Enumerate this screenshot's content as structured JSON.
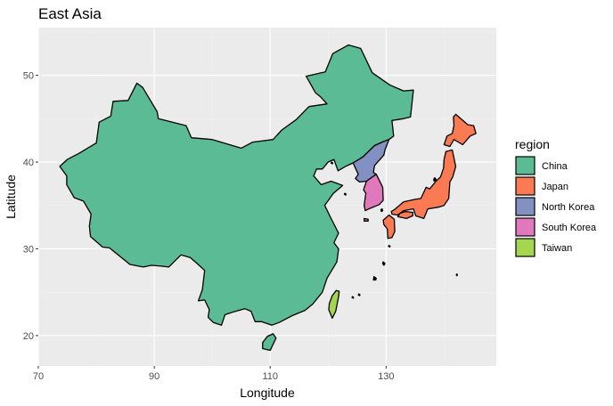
{
  "chart_data": {
    "type": "map",
    "title": "East Asia",
    "xlabel": "Longitude",
    "ylabel": "Latitude",
    "xlim": [
      70,
      149
    ],
    "ylim": [
      16.5,
      55.5
    ],
    "x_ticks": [
      70,
      90,
      110,
      130
    ],
    "y_ticks": [
      20,
      30,
      40,
      50
    ],
    "grid": true,
    "legend": {
      "title": "region",
      "position": "right",
      "entries": [
        {
          "name": "China",
          "color": "#5BBB95"
        },
        {
          "name": "Japan",
          "color": "#FA7B53"
        },
        {
          "name": "North Korea",
          "color": "#8390C2"
        },
        {
          "name": "South Korea",
          "color": "#E079BC"
        },
        {
          "name": "Taiwan",
          "color": "#A5D64F"
        }
      ]
    },
    "regions": [
      {
        "name": "China",
        "color": "#5BBB95",
        "polygons": [
          [
            [
              73.7,
              39.5
            ],
            [
              75.0,
              40.3
            ],
            [
              77.0,
              41.0
            ],
            [
              80.0,
              42.2
            ],
            [
              80.5,
              44.6
            ],
            [
              82.5,
              45.3
            ],
            [
              82.9,
              47.0
            ],
            [
              85.5,
              47.1
            ],
            [
              87.0,
              49.1
            ],
            [
              88.0,
              48.6
            ],
            [
              90.5,
              45.8
            ],
            [
              90.7,
              45.0
            ],
            [
              95.5,
              44.2
            ],
            [
              96.4,
              42.8
            ],
            [
              100.0,
              42.6
            ],
            [
              105.0,
              41.6
            ],
            [
              107.0,
              42.3
            ],
            [
              110.5,
              42.6
            ],
            [
              112.0,
              43.7
            ],
            [
              114.5,
              44.9
            ],
            [
              116.7,
              46.4
            ],
            [
              119.8,
              46.7
            ],
            [
              118.7,
              47.5
            ],
            [
              117.8,
              48.0
            ],
            [
              116.2,
              49.9
            ],
            [
              119.5,
              50.4
            ],
            [
              120.8,
              52.5
            ],
            [
              123.5,
              53.5
            ],
            [
              125.6,
              53.1
            ],
            [
              127.6,
              50.3
            ],
            [
              130.6,
              48.9
            ],
            [
              133.0,
              48.2
            ],
            [
              134.7,
              48.3
            ],
            [
              134.2,
              45.2
            ],
            [
              133.0,
              45.0
            ],
            [
              131.0,
              44.8
            ],
            [
              131.3,
              43.0
            ],
            [
              130.5,
              42.6
            ],
            [
              129.7,
              42.4
            ],
            [
              128.0,
              41.9
            ],
            [
              126.0,
              40.6
            ],
            [
              124.3,
              39.9
            ],
            [
              123.0,
              39.5
            ],
            [
              121.7,
              39.0
            ],
            [
              121.0,
              40.3
            ],
            [
              120.0,
              40.0
            ],
            [
              119.0,
              39.2
            ],
            [
              118.0,
              39.2
            ],
            [
              117.5,
              38.4
            ],
            [
              118.8,
              37.4
            ],
            [
              120.5,
              37.8
            ],
            [
              122.5,
              37.3
            ],
            [
              120.9,
              36.4
            ],
            [
              119.4,
              35.0
            ],
            [
              120.5,
              33.5
            ],
            [
              121.8,
              31.8
            ],
            [
              121.0,
              30.7
            ],
            [
              121.8,
              30.0
            ],
            [
              121.5,
              28.5
            ],
            [
              119.8,
              26.6
            ],
            [
              119.0,
              25.0
            ],
            [
              117.3,
              23.6
            ],
            [
              116.0,
              22.9
            ],
            [
              113.8,
              22.3
            ],
            [
              111.5,
              21.5
            ],
            [
              110.3,
              21.2
            ],
            [
              108.5,
              21.6
            ],
            [
              107.4,
              21.6
            ],
            [
              106.7,
              22.8
            ],
            [
              105.6,
              23.1
            ],
            [
              103.5,
              22.7
            ],
            [
              102.2,
              22.4
            ],
            [
              101.6,
              21.2
            ],
            [
              100.2,
              21.5
            ],
            [
              99.3,
              22.1
            ],
            [
              99.5,
              23.0
            ],
            [
              98.7,
              24.1
            ],
            [
              97.6,
              24.0
            ],
            [
              98.3,
              25.3
            ],
            [
              98.7,
              27.5
            ],
            [
              97.4,
              28.3
            ],
            [
              96.2,
              29.0
            ],
            [
              94.6,
              29.3
            ],
            [
              92.5,
              27.9
            ],
            [
              91.2,
              28.0
            ],
            [
              89.5,
              28.1
            ],
            [
              88.1,
              27.9
            ],
            [
              85.8,
              28.2
            ],
            [
              82.3,
              30.1
            ],
            [
              81.1,
              30.2
            ],
            [
              79.0,
              31.4
            ],
            [
              78.8,
              32.6
            ],
            [
              79.1,
              34.0
            ],
            [
              77.8,
              35.5
            ],
            [
              76.2,
              35.9
            ],
            [
              74.9,
              37.4
            ],
            [
              74.9,
              38.4
            ],
            [
              73.7,
              39.5
            ]
          ],
          [
            [
              108.7,
              18.5
            ],
            [
              110.0,
              18.3
            ],
            [
              111.0,
              19.7
            ],
            [
              110.5,
              20.2
            ],
            [
              109.5,
              19.9
            ],
            [
              108.7,
              19.2
            ],
            [
              108.7,
              18.5
            ]
          ]
        ]
      },
      {
        "name": "North Korea",
        "color": "#8390C2",
        "polygons": [
          [
            [
              124.3,
              39.9
            ],
            [
              126.0,
              40.6
            ],
            [
              128.0,
              41.9
            ],
            [
              129.7,
              42.4
            ],
            [
              130.5,
              42.6
            ],
            [
              129.8,
              41.4
            ],
            [
              129.6,
              40.8
            ],
            [
              128.0,
              39.6
            ],
            [
              127.8,
              38.8
            ],
            [
              128.3,
              38.6
            ],
            [
              126.6,
              37.8
            ],
            [
              125.4,
              37.7
            ],
            [
              124.7,
              38.1
            ],
            [
              125.2,
              38.6
            ],
            [
              124.7,
              39.3
            ],
            [
              124.3,
              39.9
            ]
          ]
        ]
      },
      {
        "name": "South Korea",
        "color": "#E079BC",
        "polygons": [
          [
            [
              126.6,
              37.8
            ],
            [
              128.3,
              38.6
            ],
            [
              129.4,
              37.1
            ],
            [
              129.5,
              35.6
            ],
            [
              128.8,
              35.1
            ],
            [
              127.0,
              34.6
            ],
            [
              126.4,
              34.4
            ],
            [
              126.2,
              35.0
            ],
            [
              126.5,
              36.4
            ],
            [
              126.1,
              36.8
            ],
            [
              126.6,
              37.8
            ]
          ],
          [
            [
              126.2,
              33.5
            ],
            [
              126.9,
              33.4
            ],
            [
              126.9,
              33.2
            ],
            [
              126.2,
              33.2
            ],
            [
              126.2,
              33.5
            ]
          ]
        ]
      },
      {
        "name": "Japan",
        "color": "#FA7B53",
        "polygons": [
          [
            [
              140.0,
              42.0
            ],
            [
              141.0,
              41.8
            ],
            [
              141.7,
              42.6
            ],
            [
              143.2,
              42.0
            ],
            [
              144.5,
              43.0
            ],
            [
              145.5,
              43.3
            ],
            [
              145.1,
              44.2
            ],
            [
              144.1,
              44.3
            ],
            [
              142.0,
              45.5
            ],
            [
              141.6,
              45.2
            ],
            [
              141.7,
              44.2
            ],
            [
              141.4,
              43.3
            ],
            [
              140.5,
              43.0
            ],
            [
              140.0,
              42.0
            ]
          ],
          [
            [
              141.4,
              41.4
            ],
            [
              142.0,
              39.5
            ],
            [
              141.5,
              38.3
            ],
            [
              141.0,
              37.7
            ],
            [
              140.8,
              35.8
            ],
            [
              140.0,
              35.0
            ],
            [
              139.0,
              34.8
            ],
            [
              137.2,
              34.6
            ],
            [
              136.5,
              33.5
            ],
            [
              135.1,
              33.8
            ],
            [
              134.7,
              34.6
            ],
            [
              133.0,
              34.4
            ],
            [
              132.0,
              33.9
            ],
            [
              131.0,
              34.0
            ],
            [
              130.9,
              34.3
            ],
            [
              131.4,
              34.5
            ],
            [
              133.0,
              35.4
            ],
            [
              135.0,
              35.7
            ],
            [
              136.0,
              35.8
            ],
            [
              136.9,
              37.1
            ],
            [
              137.5,
              36.9
            ],
            [
              138.6,
              37.8
            ],
            [
              139.4,
              38.3
            ],
            [
              139.9,
              39.3
            ],
            [
              140.0,
              40.3
            ],
            [
              140.3,
              41.2
            ],
            [
              141.4,
              41.4
            ]
          ],
          [
            [
              129.5,
              33.3
            ],
            [
              130.5,
              33.9
            ],
            [
              131.4,
              33.4
            ],
            [
              131.5,
              32.0
            ],
            [
              131.0,
              31.3
            ],
            [
              130.3,
              31.2
            ],
            [
              130.2,
              32.3
            ],
            [
              129.6,
              32.8
            ],
            [
              129.5,
              33.3
            ]
          ],
          [
            [
              132.0,
              33.7
            ],
            [
              133.5,
              33.5
            ],
            [
              134.6,
              33.8
            ],
            [
              134.6,
              34.2
            ],
            [
              133.3,
              34.3
            ],
            [
              132.4,
              34.1
            ],
            [
              132.0,
              33.7
            ]
          ]
        ]
      },
      {
        "name": "Taiwan",
        "color": "#A5D64F",
        "polygons": [
          [
            [
              120.1,
              23.0
            ],
            [
              120.7,
              22.0
            ],
            [
              121.3,
              22.8
            ],
            [
              121.8,
              24.5
            ],
            [
              121.9,
              25.1
            ],
            [
              121.4,
              25.2
            ],
            [
              120.7,
              24.6
            ],
            [
              120.2,
              23.7
            ],
            [
              120.1,
              23.0
            ]
          ]
        ]
      }
    ],
    "islets": [
      [
        [
          127.9,
          26.8
        ],
        [
          128.3,
          26.6
        ],
        [
          128.2,
          26.4
        ],
        [
          127.8,
          26.4
        ],
        [
          127.9,
          26.8
        ]
      ],
      [
        [
          129.5,
          28.5
        ],
        [
          129.8,
          28.3
        ],
        [
          129.6,
          28.1
        ],
        [
          129.4,
          28.3
        ],
        [
          129.5,
          28.5
        ]
      ],
      [
        [
          130.5,
          30.4
        ],
        [
          130.7,
          30.3
        ],
        [
          130.6,
          30.2
        ],
        [
          130.4,
          30.3
        ],
        [
          130.5,
          30.4
        ]
      ],
      [
        [
          124.2,
          24.5
        ],
        [
          124.4,
          24.4
        ],
        [
          124.3,
          24.3
        ],
        [
          124.1,
          24.4
        ],
        [
          124.2,
          24.5
        ]
      ],
      [
        [
          125.3,
          24.8
        ],
        [
          125.5,
          24.7
        ],
        [
          125.4,
          24.6
        ],
        [
          125.2,
          24.7
        ],
        [
          125.3,
          24.8
        ]
      ],
      [
        [
          142.2,
          27.1
        ],
        [
          142.3,
          27.0
        ],
        [
          142.2,
          26.9
        ],
        [
          142.1,
          27.0
        ],
        [
          142.2,
          27.1
        ]
      ],
      [
        [
          138.4,
          38.2
        ],
        [
          138.6,
          38.0
        ],
        [
          138.3,
          37.8
        ],
        [
          138.2,
          38.0
        ],
        [
          138.4,
          38.2
        ]
      ],
      [
        [
          129.3,
          34.6
        ],
        [
          129.4,
          34.4
        ],
        [
          129.2,
          34.3
        ],
        [
          129.1,
          34.5
        ],
        [
          129.3,
          34.6
        ]
      ],
      [
        [
          120.6,
          40.0
        ],
        [
          120.8,
          39.9
        ],
        [
          120.7,
          39.8
        ],
        [
          120.5,
          39.9
        ],
        [
          120.6,
          40.0
        ]
      ],
      [
        [
          122.9,
          36.4
        ],
        [
          123.1,
          36.3
        ],
        [
          123.0,
          36.2
        ],
        [
          122.8,
          36.3
        ],
        [
          122.9,
          36.4
        ]
      ]
    ]
  }
}
